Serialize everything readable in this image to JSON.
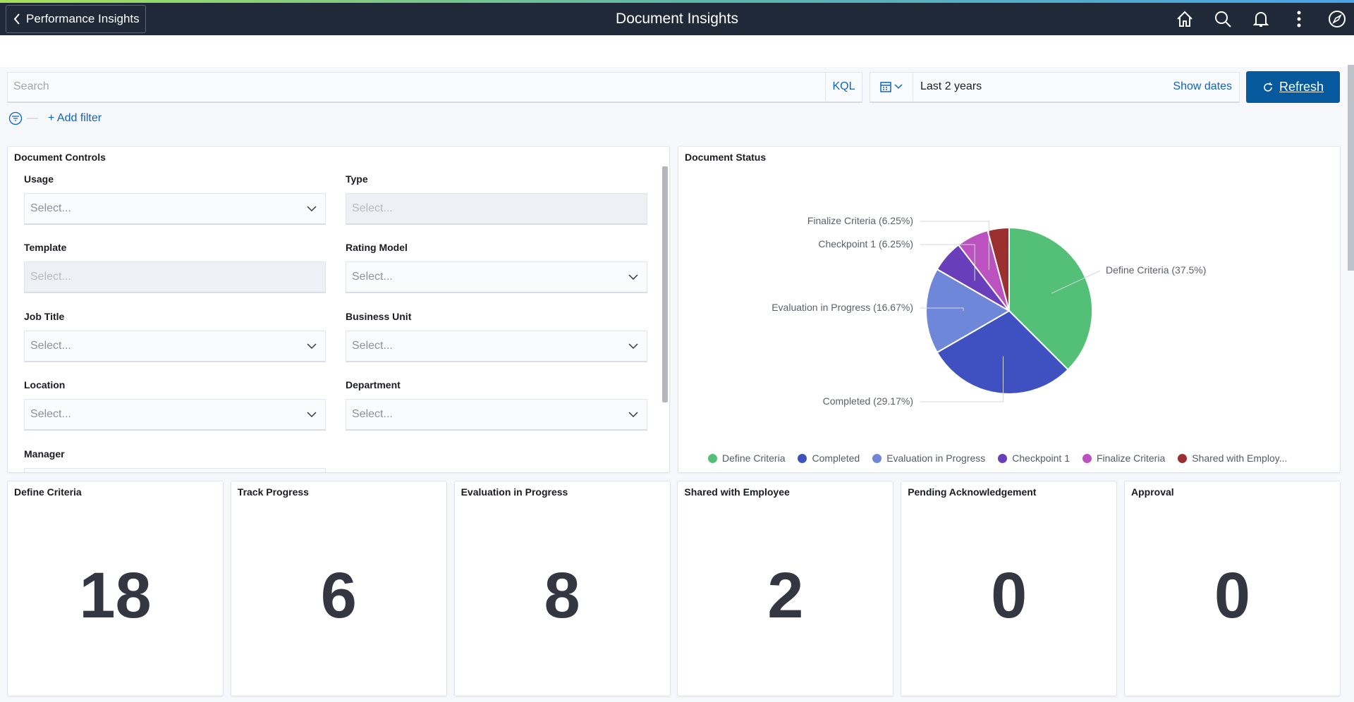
{
  "header": {
    "back_label": "Performance Insights",
    "title": "Document Insights",
    "icons": [
      "home-icon",
      "search-icon",
      "bell-icon",
      "more-vertical-icon",
      "compass-icon"
    ]
  },
  "query": {
    "search_placeholder": "Search",
    "kql_label": "KQL",
    "date_range": "Last 2 years",
    "show_dates_label": "Show dates",
    "refresh_label": "Refresh",
    "add_filter_label": "+ Add filter"
  },
  "controls": {
    "title": "Document Controls",
    "placeholder": "Select...",
    "fields": [
      {
        "label": "Usage",
        "disabled": false
      },
      {
        "label": "Type",
        "disabled": true
      },
      {
        "label": "Template",
        "disabled": true
      },
      {
        "label": "Rating Model",
        "disabled": false
      },
      {
        "label": "Job Title",
        "disabled": false
      },
      {
        "label": "Business Unit",
        "disabled": false
      },
      {
        "label": "Location",
        "disabled": false
      },
      {
        "label": "Department",
        "disabled": false
      },
      {
        "label": "Manager",
        "disabled": false
      }
    ]
  },
  "status": {
    "title": "Document Status"
  },
  "chart_data": {
    "type": "pie",
    "title": "Document Status",
    "slices": [
      {
        "label": "Define Criteria",
        "value": 18,
        "percent": "37.5%",
        "color": "#54bf77",
        "legend": "Define Criteria"
      },
      {
        "label": "Completed",
        "value": 14,
        "percent": "29.17%",
        "color": "#3f51c0",
        "legend": "Completed"
      },
      {
        "label": "Evaluation in Progress",
        "value": 8,
        "percent": "16.67%",
        "color": "#6e87d8",
        "legend": "Evaluation in Progress"
      },
      {
        "label": "Checkpoint 1",
        "value": 3,
        "percent": "6.25%",
        "color": "#6a3dbb",
        "legend": "Checkpoint 1"
      },
      {
        "label": "Finalize Criteria",
        "value": 3,
        "percent": "6.25%",
        "color": "#bb52c0",
        "legend": "Finalize Criteria"
      },
      {
        "label": "Shared with Employee",
        "value": 2,
        "percent": "4.17%",
        "color": "#9b3030",
        "legend": "Shared with Employ..."
      }
    ],
    "data_labels": [
      "Define Criteria (37.5%)",
      "Completed (29.17%)",
      "Evaluation in Progress (16.67%)",
      "Checkpoint 1 (6.25%)",
      "Finalize Criteria (6.25%)"
    ],
    "legend_position": "bottom"
  },
  "cards": [
    {
      "title": "Define Criteria",
      "value": "18"
    },
    {
      "title": "Track Progress",
      "value": "6"
    },
    {
      "title": "Evaluation in Progress",
      "value": "8"
    },
    {
      "title": "Shared with Employee",
      "value": "2"
    },
    {
      "title": "Pending Acknowledgement",
      "value": "0"
    },
    {
      "title": "Approval",
      "value": "0"
    }
  ]
}
